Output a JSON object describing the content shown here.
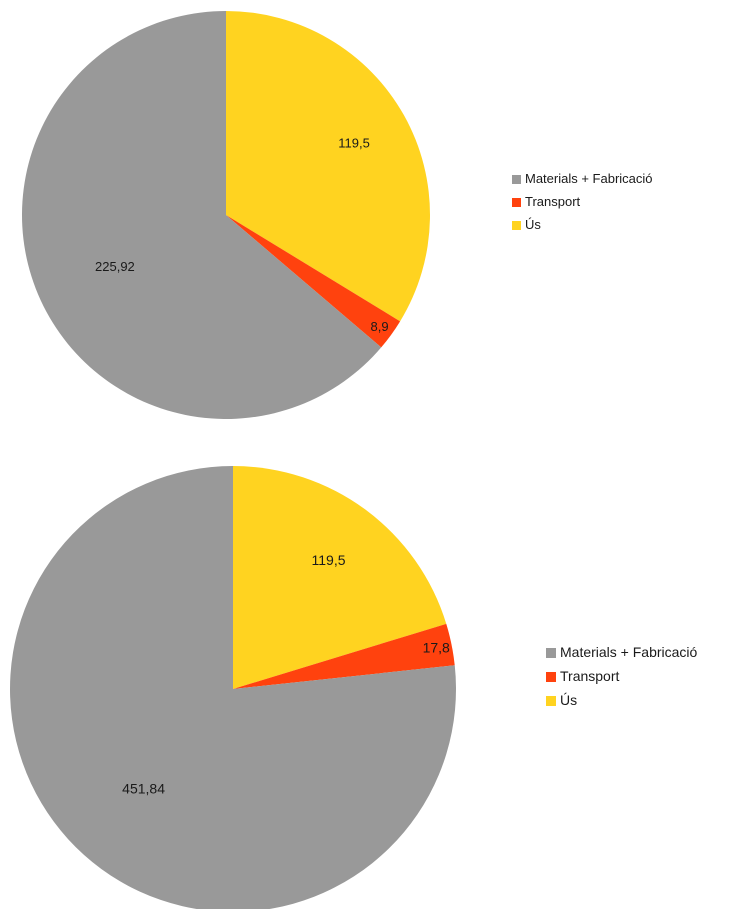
{
  "chart_data": [
    {
      "type": "pie",
      "title": "",
      "slices": [
        {
          "label": "Materials + Fabricació",
          "value": 225.92,
          "display": "225,92",
          "color": "#999999"
        },
        {
          "label": "Transport",
          "value": 8.9,
          "display": "8,9",
          "color": "#ff420e"
        },
        {
          "label": "Ús",
          "value": 119.5,
          "display": "119,5",
          "color": "#ffd320"
        }
      ],
      "start": "12 o'clock",
      "direction": "clockwise from Ús",
      "legend": {
        "position": "right",
        "items": [
          "Materials + Fabricació",
          "Transport",
          "Ús"
        ]
      }
    },
    {
      "type": "pie",
      "title": "",
      "slices": [
        {
          "label": "Materials + Fabricació",
          "value": 451.84,
          "display": "451,84",
          "color": "#999999"
        },
        {
          "label": "Transport",
          "value": 17.8,
          "display": "17,8",
          "color": "#ff420e"
        },
        {
          "label": "Ús",
          "value": 119.5,
          "display": "119,5",
          "color": "#ffd320"
        }
      ],
      "start": "12 o'clock",
      "direction": "clockwise from Ús",
      "legend": {
        "position": "right",
        "items": [
          "Materials + Fabricació",
          "Transport",
          "Ús"
        ]
      }
    }
  ]
}
